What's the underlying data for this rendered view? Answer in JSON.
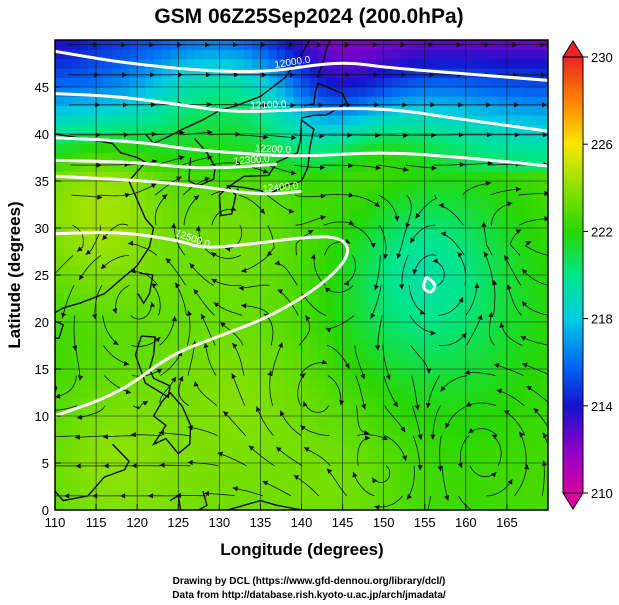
{
  "chart_data": {
    "type": "heatmap",
    "title": "GSM 06Z25Sep2024 (200.0hPa)",
    "xlabel": "Longitude (degrees)",
    "ylabel": "Latitude (degrees)",
    "xlim": [
      110,
      170
    ],
    "ylim": [
      0,
      50
    ],
    "x_ticks": [
      110,
      115,
      120,
      125,
      130,
      135,
      140,
      145,
      150,
      155,
      160,
      165
    ],
    "y_ticks": [
      0,
      5,
      10,
      15,
      20,
      25,
      30,
      35,
      40,
      45
    ],
    "grid": true,
    "colorbar": {
      "min": 210,
      "max": 230,
      "ticks": [
        210,
        214,
        218,
        222,
        226,
        230
      ],
      "position": "right"
    },
    "contours": [
      {
        "label": "12000.0",
        "points": [
          [
            110,
            48.8
          ],
          [
            118,
            47.6
          ],
          [
            128,
            46.7
          ],
          [
            136,
            46.6
          ],
          [
            142,
            47.4
          ],
          [
            146,
            47.6
          ],
          [
            150,
            47.1
          ],
          [
            160,
            46.4
          ],
          [
            170,
            45.7
          ]
        ]
      },
      {
        "label": "12100.0",
        "points": [
          [
            110,
            44.3
          ],
          [
            118,
            44.0
          ],
          [
            126,
            43.0
          ],
          [
            132,
            42.3
          ],
          [
            140,
            42.6
          ],
          [
            150,
            42.8
          ],
          [
            160,
            41.5
          ],
          [
            170,
            40.3
          ]
        ]
      },
      {
        "label": "12200.0",
        "points": [
          [
            110,
            39.6
          ],
          [
            120,
            39.2
          ],
          [
            126,
            38.4
          ],
          [
            133,
            37.9
          ],
          [
            140,
            37.6
          ],
          [
            150,
            38.1
          ],
          [
            160,
            37.5
          ],
          [
            170,
            36.6
          ]
        ]
      },
      {
        "label": "12300.0",
        "points": [
          [
            110,
            37.2
          ],
          [
            120,
            37.0
          ],
          [
            126,
            36.4
          ],
          [
            131,
            36.4
          ],
          [
            137,
            36.8
          ]
        ]
      },
      {
        "label": "12400.0",
        "points": [
          [
            110,
            35.5
          ],
          [
            120,
            35.1
          ],
          [
            128,
            34.4
          ],
          [
            135,
            33.5
          ],
          [
            140,
            33.9
          ]
        ]
      },
      {
        "label": "12500.0",
        "points": [
          [
            110,
            29.4
          ],
          [
            118,
            29.6
          ],
          [
            125,
            28.7
          ],
          [
            128,
            27.8
          ],
          [
            134,
            28.3
          ],
          [
            140,
            29.0
          ],
          [
            145,
            29.1
          ],
          [
            146,
            27.0
          ],
          [
            142,
            23.6
          ],
          [
            136,
            20.5
          ],
          [
            130,
            18.5
          ],
          [
            124,
            16.5
          ],
          [
            118,
            12.5
          ],
          [
            110,
            10.0
          ]
        ]
      },
      {
        "label": "",
        "points": [
          [
            155.2,
            24.8
          ],
          [
            156.4,
            24.0
          ],
          [
            155.8,
            23.0
          ],
          [
            154.7,
            23.6
          ],
          [
            155.2,
            24.8
          ]
        ]
      }
    ],
    "temperature_features": [
      {
        "kind": "low",
        "lon": 118,
        "lat": 47.5,
        "value": 214
      },
      {
        "kind": "low",
        "lon": 145,
        "lat": 46.5,
        "value": 211
      },
      {
        "kind": "mid",
        "lon": 130,
        "lat": 41,
        "value": 220
      },
      {
        "kind": "high",
        "lon": 116,
        "lat": 31.5,
        "value": 224.5
      },
      {
        "kind": "high",
        "lon": 150,
        "lat": 33,
        "value": 223.5
      },
      {
        "kind": "high",
        "lon": 132,
        "lat": 29,
        "value": 223.5
      },
      {
        "kind": "cool",
        "lon": 155,
        "lat": 25,
        "value": 219.5
      },
      {
        "kind": "warm",
        "lon": 118,
        "lat": 5,
        "value": 224
      },
      {
        "kind": "warm",
        "lon": 143,
        "lat": 2,
        "value": 223.5
      },
      {
        "kind": "warm",
        "lon": 132,
        "lat": 11,
        "value": 223.8
      }
    ],
    "wind": {
      "cyclones": [
        [
          156,
          25,
          1
        ],
        [
          120,
          22,
          1
        ],
        [
          142,
          12,
          -1
        ],
        [
          162,
          6,
          1
        ]
      ],
      "anticyclones": [
        [
          145,
          26,
          -1
        ],
        [
          131,
          30,
          -1
        ],
        [
          150,
          4,
          -1
        ]
      ]
    }
  },
  "credits": {
    "line1": "Drawing by DCL (https://www.gfd-dennou.org/library/dcl/)",
    "line2": "Data from http://database.rish.kyoto-u.ac.jp/arch/jmadata/"
  }
}
